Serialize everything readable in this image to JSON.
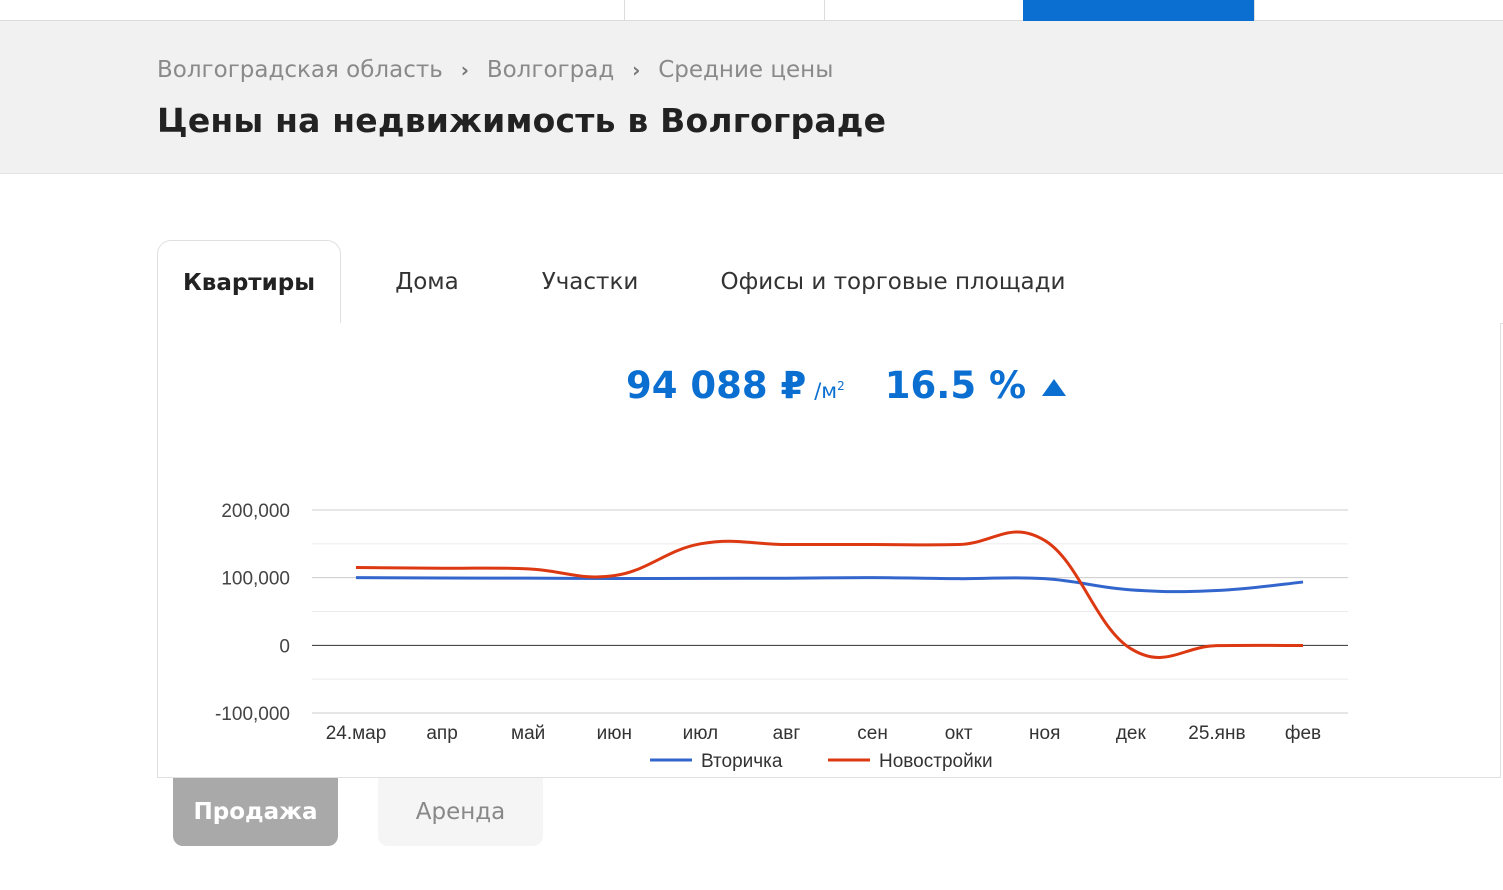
{
  "breadcrumb": {
    "items": [
      "Волгоградская область",
      "Волгоград",
      "Средние цены"
    ],
    "separator": "›"
  },
  "page_title": "Цены на недвижимость в Волгограде",
  "tabs": [
    {
      "label": "Квартиры",
      "active": true
    },
    {
      "label": "Дома",
      "active": false
    },
    {
      "label": "Участки",
      "active": false
    },
    {
      "label": "Офисы и торговые площади",
      "active": false
    }
  ],
  "summary": {
    "price": "94 088 ₽",
    "unit": "/м",
    "unit_sup": "2",
    "change": "16.5 %",
    "trend": "up",
    "color": "#0a6fd1"
  },
  "deal_type": {
    "sale": "Продажа",
    "rent": "Аренда",
    "active": "sale"
  },
  "chart_data": {
    "type": "line",
    "title": "",
    "xlabel": "",
    "ylabel": "",
    "categories": [
      "24.мар",
      "апр",
      "май",
      "июн",
      "июл",
      "авг",
      "сен",
      "окт",
      "ноя",
      "дек",
      "25.янв",
      "фев"
    ],
    "y_ticks": [
      "200,000",
      "100,000",
      "0",
      "-100,000"
    ],
    "ylim": [
      -100000,
      200000
    ],
    "grid": true,
    "legend_position": "bottom",
    "series": [
      {
        "name": "Вторичка",
        "color": "#3366cc",
        "values": [
          100000,
          99500,
          99300,
          98800,
          99000,
          99200,
          100000,
          98500,
          98500,
          82000,
          81000,
          93500
        ]
      },
      {
        "name": "Новостройки",
        "color": "#dc3912",
        "values": [
          115000,
          114000,
          113000,
          103000,
          150000,
          149000,
          149000,
          149000,
          155000,
          -5000,
          -500,
          -300
        ]
      }
    ]
  }
}
